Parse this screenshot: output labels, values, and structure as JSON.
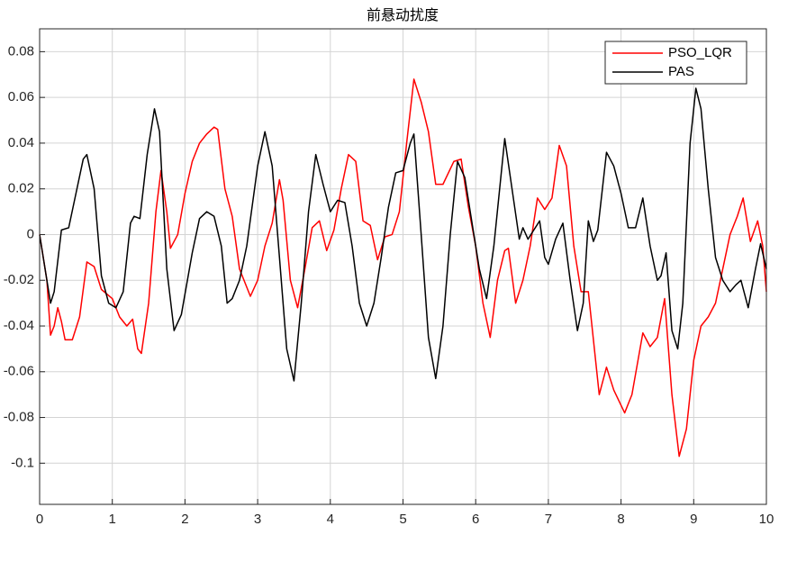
{
  "chart_data": {
    "type": "line",
    "title": "前悬动扰度",
    "xlim": [
      0,
      10
    ],
    "xticks": [
      0,
      1,
      2,
      3,
      4,
      5,
      6,
      7,
      8,
      9,
      10
    ],
    "ylim": [
      -0.118,
      0.09
    ],
    "yticks": [
      -0.1,
      -0.08,
      -0.06,
      -0.04,
      -0.02,
      0,
      0.02,
      0.04,
      0.06,
      0.08
    ],
    "grid": true,
    "legend": "upper right",
    "series": [
      {
        "name": "PSO_LQR",
        "color": "#ff0000",
        "x": [
          0,
          0.1,
          0.15,
          0.2,
          0.25,
          0.3,
          0.35,
          0.45,
          0.55,
          0.65,
          0.75,
          0.85,
          1.0,
          1.1,
          1.2,
          1.28,
          1.35,
          1.4,
          1.5,
          1.6,
          1.67,
          1.75,
          1.8,
          1.9,
          2.0,
          2.1,
          2.2,
          2.3,
          2.4,
          2.45,
          2.55,
          2.65,
          2.75,
          2.9,
          3.0,
          3.1,
          3.2,
          3.3,
          3.35,
          3.45,
          3.55,
          3.65,
          3.75,
          3.85,
          3.95,
          4.05,
          4.15,
          4.25,
          4.35,
          4.45,
          4.55,
          4.65,
          4.75,
          4.85,
          4.95,
          5.05,
          5.15,
          5.25,
          5.35,
          5.45,
          5.55,
          5.7,
          5.8,
          5.9,
          6.0,
          6.1,
          6.2,
          6.3,
          6.4,
          6.45,
          6.55,
          6.65,
          6.75,
          6.85,
          6.95,
          7.05,
          7.15,
          7.25,
          7.35,
          7.45,
          7.55,
          7.7,
          7.8,
          7.9,
          8.05,
          8.15,
          8.3,
          8.4,
          8.5,
          8.6,
          8.7,
          8.8,
          8.9,
          9.0,
          9.1,
          9.2,
          9.3,
          9.4,
          9.5,
          9.6,
          9.68,
          9.78,
          9.88,
          9.95,
          10
        ],
        "values": [
          0,
          -0.02,
          -0.044,
          -0.04,
          -0.032,
          -0.038,
          -0.046,
          -0.046,
          -0.036,
          -0.012,
          -0.014,
          -0.024,
          -0.028,
          -0.036,
          -0.04,
          -0.037,
          -0.05,
          -0.052,
          -0.03,
          0.01,
          0.028,
          0.01,
          -0.006,
          0,
          0.018,
          0.032,
          0.04,
          0.044,
          0.047,
          0.046,
          0.02,
          0.008,
          -0.015,
          -0.027,
          -0.02,
          -0.005,
          0.005,
          0.024,
          0.015,
          -0.02,
          -0.032,
          -0.015,
          0.003,
          0.006,
          -0.007,
          0.002,
          0.02,
          0.035,
          0.032,
          0.006,
          0.004,
          -0.011,
          -0.001,
          0,
          0.01,
          0.04,
          0.068,
          0.058,
          0.045,
          0.022,
          0.022,
          0.032,
          0.033,
          0.012,
          -0.005,
          -0.03,
          -0.045,
          -0.02,
          -0.007,
          -0.006,
          -0.03,
          -0.02,
          -0.005,
          0.016,
          0.011,
          0.016,
          0.039,
          0.03,
          -0.005,
          -0.025,
          -0.025,
          -0.07,
          -0.058,
          -0.068,
          -0.078,
          -0.07,
          -0.043,
          -0.049,
          -0.045,
          -0.028,
          -0.07,
          -0.097,
          -0.085,
          -0.055,
          -0.04,
          -0.036,
          -0.03,
          -0.015,
          0,
          0.008,
          0.016,
          -0.003,
          0.006,
          -0.005,
          -0.025
        ]
      },
      {
        "name": "PAS",
        "color": "#000000",
        "x": [
          0,
          0.05,
          0.15,
          0.2,
          0.3,
          0.4,
          0.5,
          0.6,
          0.65,
          0.75,
          0.85,
          0.95,
          1.05,
          1.15,
          1.25,
          1.3,
          1.38,
          1.48,
          1.58,
          1.65,
          1.75,
          1.85,
          1.95,
          2.1,
          2.2,
          2.3,
          2.4,
          2.5,
          2.58,
          2.65,
          2.75,
          2.85,
          3.0,
          3.1,
          3.2,
          3.3,
          3.4,
          3.5,
          3.6,
          3.7,
          3.8,
          3.9,
          4.0,
          4.1,
          4.2,
          4.3,
          4.4,
          4.5,
          4.6,
          4.7,
          4.8,
          4.9,
          5.0,
          5.1,
          5.15,
          5.25,
          5.35,
          5.45,
          5.55,
          5.65,
          5.75,
          5.85,
          5.95,
          6.05,
          6.15,
          6.25,
          6.4,
          6.5,
          6.6,
          6.65,
          6.72,
          6.8,
          6.88,
          6.95,
          7.0,
          7.1,
          7.2,
          7.3,
          7.4,
          7.48,
          7.55,
          7.62,
          7.68,
          7.8,
          7.9,
          8.0,
          8.1,
          8.2,
          8.3,
          8.4,
          8.5,
          8.55,
          8.62,
          8.7,
          8.78,
          8.85,
          8.95,
          9.03,
          9.1,
          9.2,
          9.3,
          9.4,
          9.5,
          9.58,
          9.65,
          9.75,
          9.85,
          9.92,
          10
        ],
        "values": [
          0,
          -0.01,
          -0.03,
          -0.025,
          0.002,
          0.003,
          0.018,
          0.033,
          0.035,
          0.02,
          -0.018,
          -0.03,
          -0.032,
          -0.025,
          0.005,
          0.008,
          0.007,
          0.035,
          0.055,
          0.045,
          -0.015,
          -0.042,
          -0.035,
          -0.008,
          0.007,
          0.01,
          0.008,
          -0.005,
          -0.03,
          -0.028,
          -0.02,
          -0.005,
          0.03,
          0.045,
          0.03,
          -0.01,
          -0.05,
          -0.064,
          -0.03,
          0.01,
          0.035,
          0.022,
          0.01,
          0.015,
          0.014,
          -0.005,
          -0.03,
          -0.04,
          -0.03,
          -0.01,
          0.012,
          0.027,
          0.028,
          0.04,
          0.044,
          0,
          -0.045,
          -0.063,
          -0.04,
          0,
          0.032,
          0.025,
          0.005,
          -0.015,
          -0.028,
          -0.005,
          0.042,
          0.02,
          -0.002,
          0.003,
          -0.002,
          0.002,
          0.006,
          -0.01,
          -0.013,
          -0.002,
          0.005,
          -0.02,
          -0.042,
          -0.03,
          0.006,
          -0.003,
          0.002,
          0.036,
          0.03,
          0.018,
          0.003,
          0.003,
          0.016,
          -0.005,
          -0.02,
          -0.018,
          -0.008,
          -0.042,
          -0.05,
          -0.03,
          0.04,
          0.064,
          0.055,
          0.02,
          -0.01,
          -0.02,
          -0.025,
          -0.022,
          -0.02,
          -0.032,
          -0.015,
          -0.004,
          -0.015
        ]
      }
    ]
  }
}
